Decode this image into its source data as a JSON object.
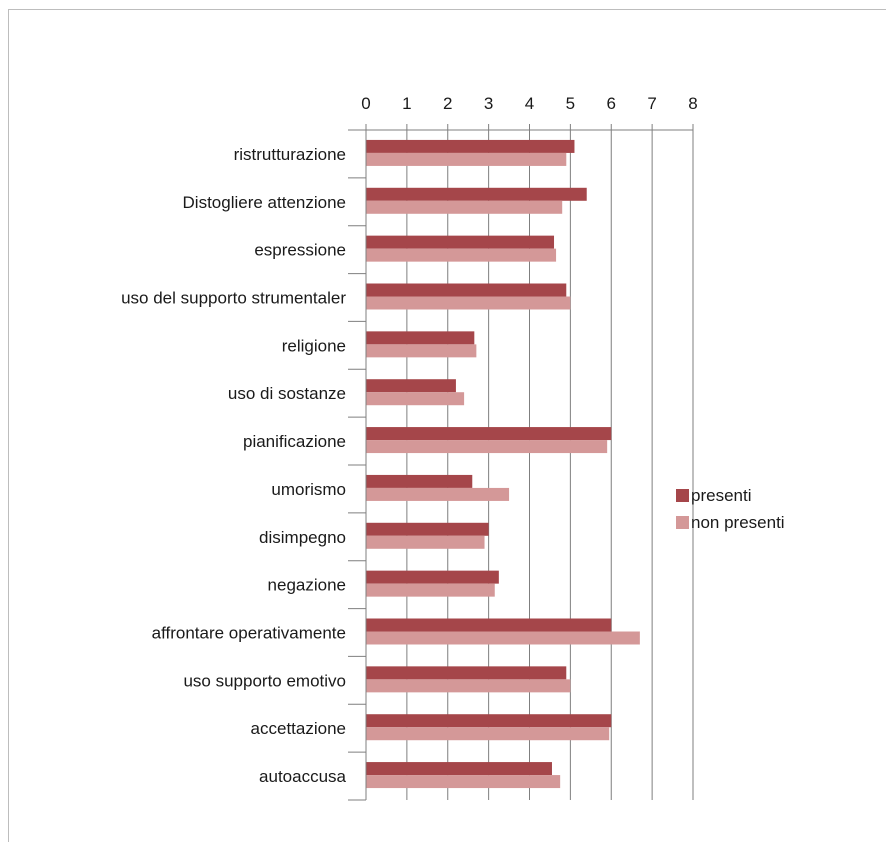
{
  "chart_data": {
    "type": "bar",
    "orientation": "horizontal",
    "categories": [
      "ristrutturazione",
      "Distogliere attenzione",
      "espressione",
      "uso del supporto strumentaler",
      "religione",
      "uso di sostanze",
      "pianificazione",
      "umorismo",
      "disimpegno",
      "negazione",
      "affrontare operativamente",
      "uso supporto emotivo",
      "accettazione",
      "autoaccusa"
    ],
    "series": [
      {
        "name": "presenti",
        "color": "#a5464a",
        "values": [
          5.1,
          5.4,
          4.6,
          4.9,
          2.65,
          2.2,
          6.0,
          2.6,
          3.0,
          3.25,
          6.0,
          4.9,
          6.0,
          4.55
        ]
      },
      {
        "name": "non presenti",
        "color": "#d49898",
        "values": [
          4.9,
          4.8,
          4.65,
          5.0,
          2.7,
          2.4,
          5.9,
          3.5,
          2.9,
          3.15,
          6.7,
          5.0,
          5.95,
          4.75
        ]
      }
    ],
    "xlim": [
      0,
      8
    ],
    "x_ticks": [
      "0",
      "1",
      "2",
      "3",
      "4",
      "5",
      "6",
      "7",
      "8"
    ],
    "x_axis_position": "top",
    "grid": true,
    "legend_position": "right",
    "title": "",
    "xlabel": "",
    "ylabel": ""
  }
}
